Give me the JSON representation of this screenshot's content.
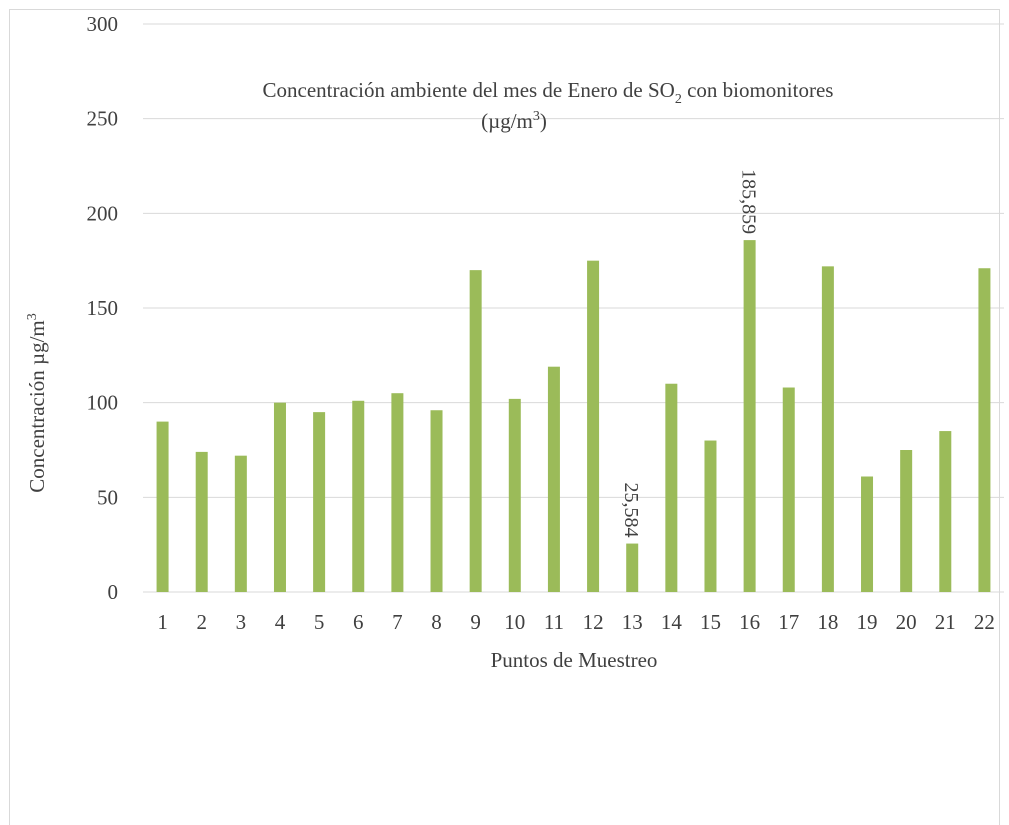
{
  "colors": {
    "bar": "#9BBB59",
    "grid": "#d9d9d9",
    "axis": "#d9d9d9",
    "text": "#404040",
    "background": "#ffffff"
  },
  "chart_data": {
    "type": "bar",
    "title_main": "Concentración ambiente del mes de Enero de SO",
    "title_sub": "2",
    "title_rest": " con biomonitores",
    "title_line2": "(µg/m",
    "title_line2_sup": "3",
    "title_line2_end": ")",
    "xlabel": "Puntos de Muestreo",
    "ylabel": "Concentración µg/m",
    "ylabel_sup": "3",
    "categories": [
      "1",
      "2",
      "3",
      "4",
      "5",
      "6",
      "7",
      "8",
      "9",
      "10",
      "11",
      "12",
      "13",
      "14",
      "15",
      "16",
      "17",
      "18",
      "19",
      "20",
      "21",
      "22"
    ],
    "values": [
      90,
      74,
      72,
      100,
      95,
      101,
      105,
      96,
      170,
      102,
      119,
      175,
      25.584,
      110,
      80,
      185.859,
      108,
      172,
      61,
      75,
      85,
      171
    ],
    "ylim": [
      0,
      300
    ],
    "yticks": [
      "0",
      "50",
      "100",
      "150",
      "200",
      "250",
      "300"
    ],
    "grid": true,
    "legend": "none",
    "data_labels": [
      {
        "index": 12,
        "text": "25,584"
      },
      {
        "index": 15,
        "text": "185,859"
      }
    ]
  }
}
